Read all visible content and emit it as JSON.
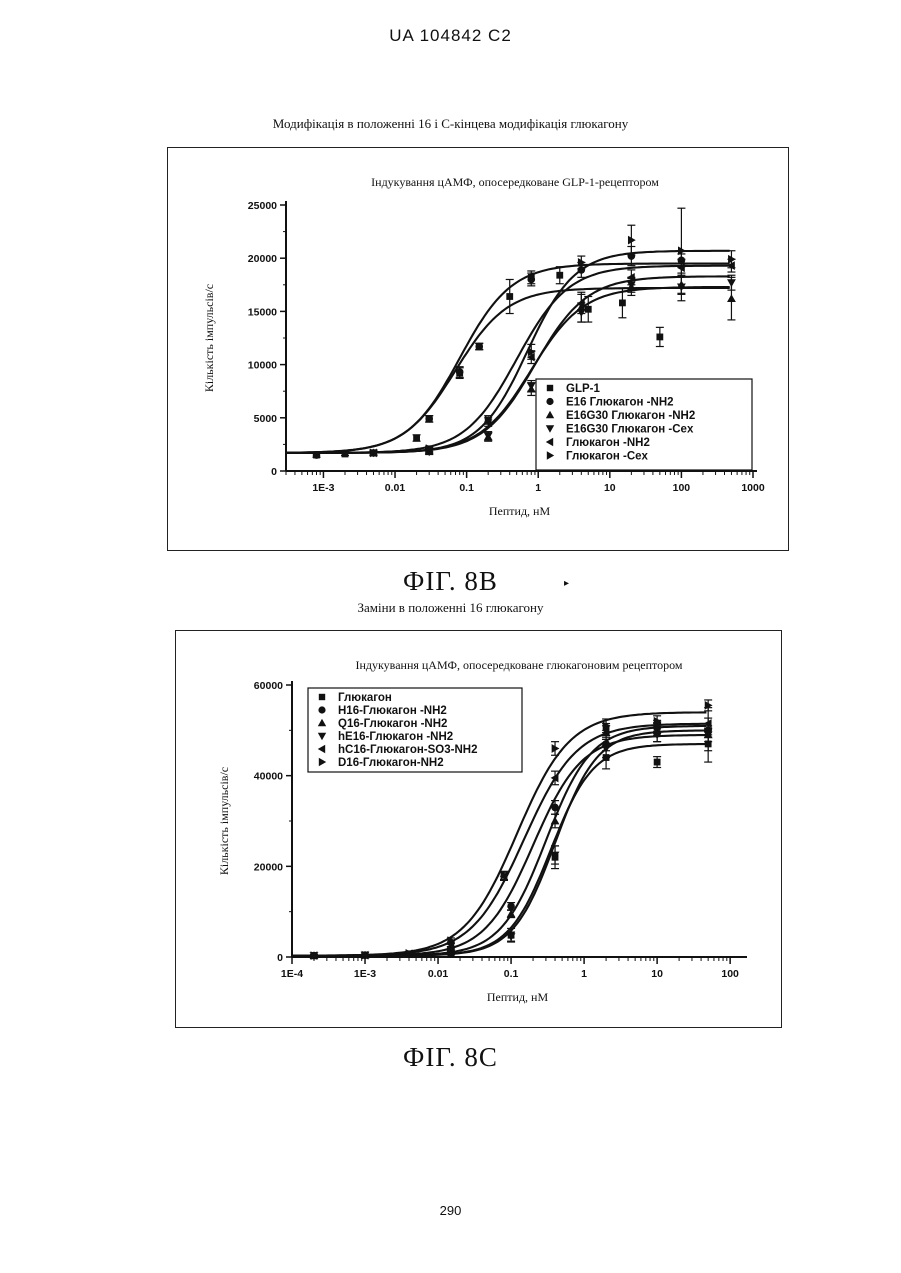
{
  "page": {
    "patent_id": "UA   104842   C2",
    "page_number": "290"
  },
  "figure_b": {
    "caption": "Модифікація в положенні 16 і С-кінцева модифікація глюкагону",
    "label": "ФІГ. 8В"
  },
  "figure_c": {
    "caption": "Заміни в положенні 16 глюкагону",
    "label": "ФІГ. 8С"
  },
  "chart_data": [
    {
      "type": "line",
      "title": "Індукування цАМФ, опосередковане GLP-1-рецептором",
      "xlabel": "Пептид, нМ",
      "ylabel": "Кількість імпульсів/с",
      "x_scale": "log",
      "xlim": [
        0.0003,
        1000
      ],
      "ylim": [
        0,
        25000
      ],
      "x_ticks": [
        {
          "value": 0.001,
          "label": "1E-3"
        },
        {
          "value": 0.01,
          "label": "0.01"
        },
        {
          "value": 0.1,
          "label": "0.1"
        },
        {
          "value": 1,
          "label": "1"
        },
        {
          "value": 10,
          "label": "10"
        },
        {
          "value": 100,
          "label": "100"
        },
        {
          "value": 1000,
          "label": "1000"
        }
      ],
      "y_ticks": [
        {
          "value": 0,
          "label": "0"
        },
        {
          "value": 5000,
          "label": "5000"
        },
        {
          "value": 10000,
          "label": "10000"
        },
        {
          "value": 15000,
          "label": "15000"
        },
        {
          "value": 20000,
          "label": "20000"
        },
        {
          "value": 25000,
          "label": "25000"
        }
      ],
      "grid": false,
      "legend_position": "bottom-right",
      "series": [
        {
          "name": "GLP-1",
          "marker": "square",
          "fit": {
            "bottom": 1700,
            "top": 17200,
            "ec50": 0.07,
            "hill": 1.2
          },
          "x": [
            0.0008,
            0.002,
            0.005,
            0.02,
            0.03,
            0.08,
            0.15,
            0.4,
            0.8,
            2,
            5,
            15,
            50
          ],
          "y": [
            1500,
            1600,
            1700,
            3100,
            4900,
            9200,
            11700,
            16400,
            18200,
            18400,
            15200,
            15800,
            12600
          ],
          "err": [
            200,
            150,
            200,
            300,
            300,
            500,
            300,
            1600,
            600,
            800,
            1200,
            1400,
            900
          ]
        },
        {
          "name": "E16 Глюкагон -NH2",
          "marker": "circle",
          "fit": {
            "bottom": 1700,
            "top": 19500,
            "ec50": 0.08,
            "hill": 1.2
          },
          "x": [
            0.0008,
            0.005,
            0.03,
            0.08,
            0.15,
            0.8,
            4,
            20,
            100
          ],
          "y": [
            1500,
            1700,
            4900,
            9300,
            11700,
            18000,
            18900,
            20200,
            19800
          ],
          "err": [
            200,
            200,
            300,
            500,
            300,
            600,
            700,
            900,
            600
          ]
        },
        {
          "name": "E16G30 Глюкагон -NH2",
          "marker": "triangle-up",
          "fit": {
            "bottom": 1700,
            "top": 17300,
            "ec50": 0.8,
            "hill": 1.2
          },
          "x": [
            0.005,
            0.03,
            0.2,
            0.8,
            4,
            20,
            100,
            500
          ],
          "y": [
            1700,
            1900,
            3200,
            7700,
            15400,
            17300,
            17500,
            16200
          ],
          "err": [
            200,
            300,
            400,
            600,
            1400,
            800,
            900,
            2000
          ]
        },
        {
          "name": "E16G30 Глюкагон -Cex",
          "marker": "triangle-down",
          "fit": {
            "bottom": 1700,
            "top": 18300,
            "ec50": 0.9,
            "hill": 1.2
          },
          "x": [
            0.005,
            0.03,
            0.2,
            0.8,
            4,
            20,
            100,
            500
          ],
          "y": [
            1700,
            1800,
            3300,
            8000,
            14900,
            17500,
            17300,
            17700
          ],
          "err": [
            200,
            250,
            400,
            500,
            900,
            700,
            1300,
            700
          ]
        },
        {
          "name": "Глюкагон -NH2",
          "marker": "triangle-left",
          "fit": {
            "bottom": 1700,
            "top": 19300,
            "ec50": 0.5,
            "hill": 1.2
          },
          "x": [
            0.005,
            0.03,
            0.2,
            0.8,
            4,
            20,
            100,
            500
          ],
          "y": [
            1700,
            2000,
            4600,
            10700,
            15700,
            18200,
            19100,
            19300
          ],
          "err": [
            200,
            250,
            400,
            600,
            900,
            700,
            800,
            600
          ]
        },
        {
          "name": "Глюкагон -Cex",
          "marker": "triangle-right",
          "fit": {
            "bottom": 1700,
            "top": 20700,
            "ec50": 0.7,
            "hill": 1.3
          },
          "x": [
            0.005,
            0.03,
            0.2,
            0.8,
            4,
            20,
            100,
            500
          ],
          "y": [
            1700,
            2100,
            4800,
            11200,
            19600,
            21700,
            20700,
            19900
          ],
          "err": [
            200,
            250,
            400,
            700,
            600,
            1400,
            4000,
            800
          ]
        }
      ]
    },
    {
      "type": "line",
      "title": "Індукування цАМФ, опосередковане глюкагоновим рецептором",
      "xlabel": "Пептид, нМ",
      "ylabel": "Кількість імпульсів/с",
      "x_scale": "log",
      "xlim": [
        0.0001,
        150
      ],
      "ylim": [
        0,
        60000
      ],
      "x_ticks": [
        {
          "value": 0.0001,
          "label": "1E-4"
        },
        {
          "value": 0.001,
          "label": "1E-3"
        },
        {
          "value": 0.01,
          "label": "0.01"
        },
        {
          "value": 0.1,
          "label": "0.1"
        },
        {
          "value": 1,
          "label": "1"
        },
        {
          "value": 10,
          "label": "10"
        },
        {
          "value": 100,
          "label": "100"
        }
      ],
      "y_ticks": [
        {
          "value": 0,
          "label": "0"
        },
        {
          "value": 20000,
          "label": "20000"
        },
        {
          "value": 40000,
          "label": "40000"
        },
        {
          "value": 60000,
          "label": "60000"
        }
      ],
      "grid": false,
      "legend_position": "top-left",
      "series": [
        {
          "name": "Глюкагон",
          "marker": "square",
          "fit": {
            "bottom": 300,
            "top": 47000,
            "ec50": 0.35,
            "hill": 1.5
          },
          "x": [
            0.0002,
            0.001,
            0.004,
            0.015,
            0.1,
            0.4,
            2,
            10,
            50
          ],
          "y": [
            300,
            400,
            600,
            900,
            4800,
            22000,
            44000,
            43000,
            47000
          ],
          "err": [
            200,
            200,
            300,
            400,
            1500,
            2500,
            2500,
            1200,
            1500
          ]
        },
        {
          "name": "H16-Глюкагон -NH2",
          "marker": "circle",
          "fit": {
            "bottom": 300,
            "top": 49000,
            "ec50": 0.2,
            "hill": 1.3
          },
          "x": [
            0.0002,
            0.001,
            0.004,
            0.015,
            0.1,
            0.4,
            2,
            10,
            50
          ],
          "y": [
            300,
            400,
            600,
            1800,
            11200,
            33000,
            47000,
            50500,
            50000
          ],
          "err": [
            200,
            200,
            300,
            500,
            800,
            1500,
            1500,
            1200,
            1000
          ]
        },
        {
          "name": "Q16-Глюкагон -NH2",
          "marker": "triangle-up",
          "fit": {
            "bottom": 300,
            "top": 51000,
            "ec50": 0.3,
            "hill": 1.4
          },
          "x": [
            0.0002,
            0.001,
            0.004,
            0.015,
            0.1,
            0.4,
            2,
            10,
            50
          ],
          "y": [
            300,
            400,
            600,
            1500,
            9500,
            30000,
            49500,
            49500,
            49000
          ],
          "err": [
            200,
            200,
            300,
            500,
            800,
            1500,
            1500,
            2000,
            6000
          ]
        },
        {
          "name": "hE16-Глюкагон -NH2",
          "marker": "triangle-down",
          "fit": {
            "bottom": 300,
            "top": 50000,
            "ec50": 0.4,
            "hill": 1.5
          },
          "x": [
            0.0002,
            0.001,
            0.004,
            0.015,
            0.1,
            0.4,
            2,
            10,
            50
          ],
          "y": [
            300,
            400,
            600,
            900,
            4500,
            22500,
            46000,
            49000,
            49000
          ],
          "err": [
            200,
            200,
            300,
            400,
            1000,
            2000,
            2000,
            1500,
            1500
          ]
        },
        {
          "name": "hC16-Глюкагон-SO3-NH2",
          "marker": "triangle-left",
          "fit": {
            "bottom": 300,
            "top": 51500,
            "ec50": 0.15,
            "hill": 1.2
          },
          "x": [
            0.0002,
            0.001,
            0.004,
            0.015,
            0.08,
            0.4,
            2,
            10,
            50
          ],
          "y": [
            300,
            400,
            700,
            2800,
            17800,
            39500,
            50000,
            51000,
            51500
          ],
          "err": [
            200,
            200,
            300,
            500,
            900,
            1500,
            1500,
            1200,
            1200
          ]
        },
        {
          "name": "D16-Глюкагон-NH2",
          "marker": "triangle-right",
          "fit": {
            "bottom": 300,
            "top": 54000,
            "ec50": 0.12,
            "hill": 1.2
          },
          "x": [
            0.0002,
            0.001,
            0.004,
            0.015,
            0.08,
            0.4,
            2,
            10,
            50
          ],
          "y": [
            300,
            400,
            800,
            3600,
            18000,
            46000,
            51000,
            52000,
            55500
          ],
          "err": [
            200,
            200,
            300,
            600,
            900,
            1500,
            1500,
            1200,
            1200
          ]
        }
      ]
    }
  ]
}
